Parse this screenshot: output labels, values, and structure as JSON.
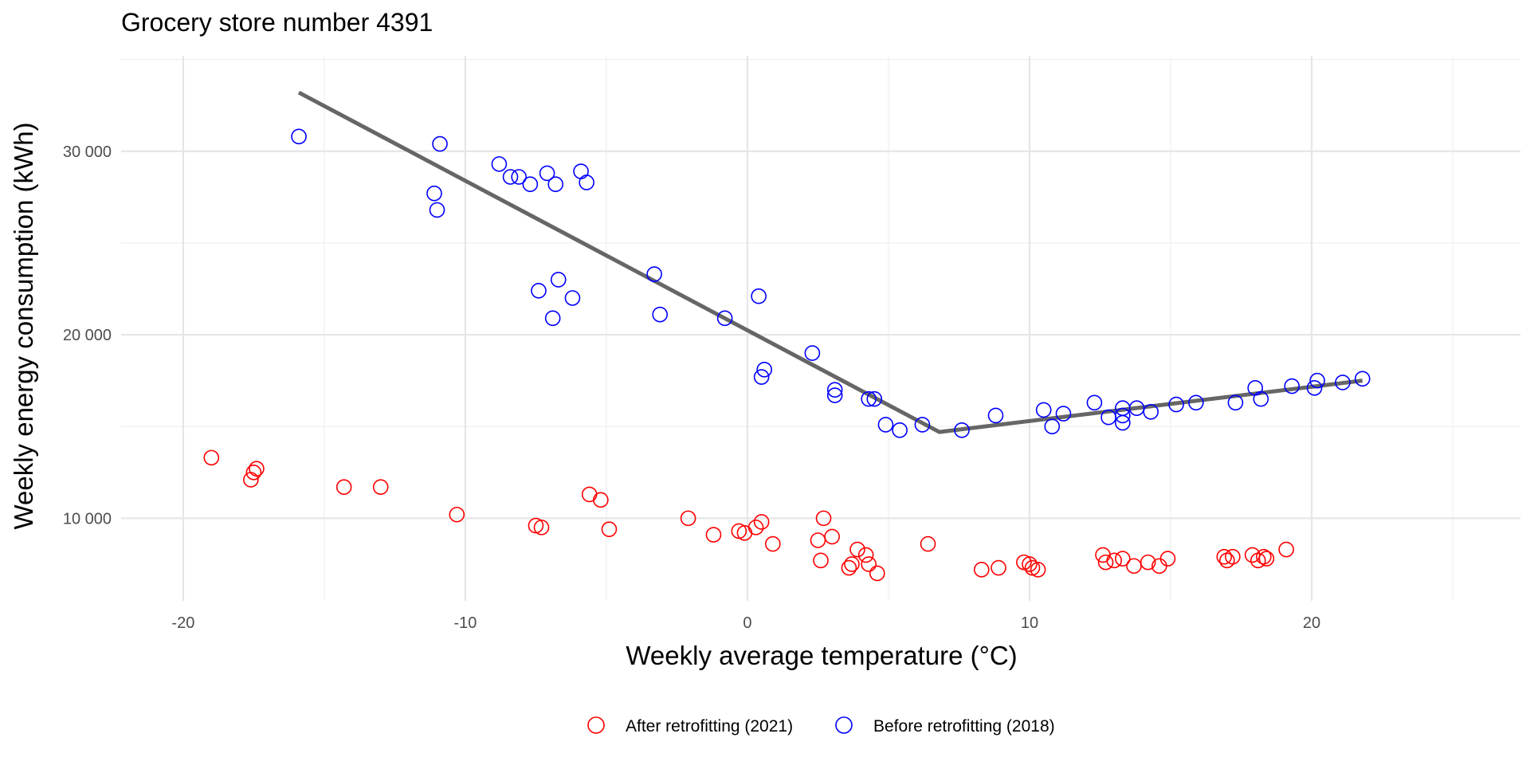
{
  "chart_data": {
    "type": "scatter",
    "title": "Grocery store number 4391",
    "xlabel": "Weekly average temperature (°C)",
    "ylabel": "Weekly energy consumption (kWh)",
    "xlim": [
      -22.2,
      27.4
    ],
    "ylim": [
      5500,
      35200
    ],
    "x_ticks": [
      -20,
      -10,
      0,
      10,
      20
    ],
    "x_tick_labels": [
      "-20",
      "-10",
      "0",
      "10",
      "20"
    ],
    "y_ticks": [
      10000,
      20000,
      30000
    ],
    "y_tick_labels": [
      "10 000",
      "20 000",
      "30 000"
    ],
    "grid": true,
    "legend_position": "bottom",
    "series": [
      {
        "name": "After retrofitting (2021)",
        "color": "#ff0000",
        "marker": "open-circle",
        "points": [
          [
            -19.0,
            13300
          ],
          [
            -17.6,
            12100
          ],
          [
            -17.5,
            12500
          ],
          [
            -17.4,
            12700
          ],
          [
            -14.3,
            11700
          ],
          [
            -13.0,
            11700
          ],
          [
            -10.3,
            10200
          ],
          [
            -7.5,
            9600
          ],
          [
            -7.3,
            9500
          ],
          [
            -5.6,
            11300
          ],
          [
            -5.2,
            11000
          ],
          [
            -4.9,
            9400
          ],
          [
            -2.1,
            10000
          ],
          [
            -1.2,
            9100
          ],
          [
            -0.3,
            9300
          ],
          [
            -0.1,
            9200
          ],
          [
            0.3,
            9500
          ],
          [
            0.5,
            9800
          ],
          [
            0.9,
            8600
          ],
          [
            2.5,
            8800
          ],
          [
            2.6,
            7700
          ],
          [
            2.7,
            10000
          ],
          [
            3.0,
            9000
          ],
          [
            3.6,
            7300
          ],
          [
            3.7,
            7500
          ],
          [
            3.9,
            8300
          ],
          [
            4.2,
            8000
          ],
          [
            4.3,
            7500
          ],
          [
            4.6,
            7000
          ],
          [
            6.4,
            8600
          ],
          [
            8.3,
            7200
          ],
          [
            8.9,
            7300
          ],
          [
            9.8,
            7600
          ],
          [
            10.0,
            7500
          ],
          [
            10.1,
            7300
          ],
          [
            10.3,
            7200
          ],
          [
            12.6,
            8000
          ],
          [
            12.7,
            7600
          ],
          [
            13.0,
            7700
          ],
          [
            13.3,
            7800
          ],
          [
            13.7,
            7400
          ],
          [
            14.2,
            7600
          ],
          [
            14.6,
            7400
          ],
          [
            14.9,
            7800
          ],
          [
            16.9,
            7900
          ],
          [
            17.0,
            7700
          ],
          [
            17.2,
            7900
          ],
          [
            17.9,
            8000
          ],
          [
            18.1,
            7700
          ],
          [
            18.3,
            7900
          ],
          [
            18.4,
            7800
          ],
          [
            19.1,
            8300
          ]
        ]
      },
      {
        "name": "Before retrofitting (2018)",
        "color": "#0000ff",
        "marker": "open-circle",
        "points": [
          [
            -15.9,
            30800
          ],
          [
            -11.1,
            27700
          ],
          [
            -11.0,
            26800
          ],
          [
            -10.9,
            30400
          ],
          [
            -8.8,
            29300
          ],
          [
            -8.4,
            28600
          ],
          [
            -8.1,
            28600
          ],
          [
            -7.7,
            28200
          ],
          [
            -7.1,
            28800
          ],
          [
            -6.8,
            28200
          ],
          [
            -5.9,
            28900
          ],
          [
            -5.7,
            28300
          ],
          [
            -7.4,
            22400
          ],
          [
            -6.9,
            20900
          ],
          [
            -6.7,
            23000
          ],
          [
            -6.2,
            22000
          ],
          [
            -3.3,
            23300
          ],
          [
            -3.1,
            21100
          ],
          [
            -0.8,
            20900
          ],
          [
            0.4,
            22100
          ],
          [
            0.5,
            17700
          ],
          [
            0.6,
            18100
          ],
          [
            2.3,
            19000
          ],
          [
            3.1,
            17000
          ],
          [
            3.1,
            16700
          ],
          [
            4.3,
            16500
          ],
          [
            4.5,
            16500
          ],
          [
            4.9,
            15100
          ],
          [
            5.4,
            14800
          ],
          [
            6.2,
            15100
          ],
          [
            7.6,
            14800
          ],
          [
            8.8,
            15600
          ],
          [
            10.5,
            15900
          ],
          [
            10.8,
            15000
          ],
          [
            11.2,
            15700
          ],
          [
            12.3,
            16300
          ],
          [
            12.8,
            15500
          ],
          [
            13.3,
            16000
          ],
          [
            13.3,
            15600
          ],
          [
            13.3,
            15200
          ],
          [
            13.8,
            16000
          ],
          [
            14.3,
            15800
          ],
          [
            15.2,
            16200
          ],
          [
            15.9,
            16300
          ],
          [
            17.3,
            16300
          ],
          [
            18.0,
            17100
          ],
          [
            18.2,
            16500
          ],
          [
            19.3,
            17200
          ],
          [
            20.1,
            17100
          ],
          [
            20.2,
            17500
          ],
          [
            21.1,
            17400
          ],
          [
            21.8,
            17600
          ]
        ]
      }
    ],
    "fit_line": {
      "color": "#666666",
      "points": [
        [
          -15.9,
          33200
        ],
        [
          6.8,
          14700
        ],
        [
          21.8,
          17500
        ]
      ]
    }
  }
}
